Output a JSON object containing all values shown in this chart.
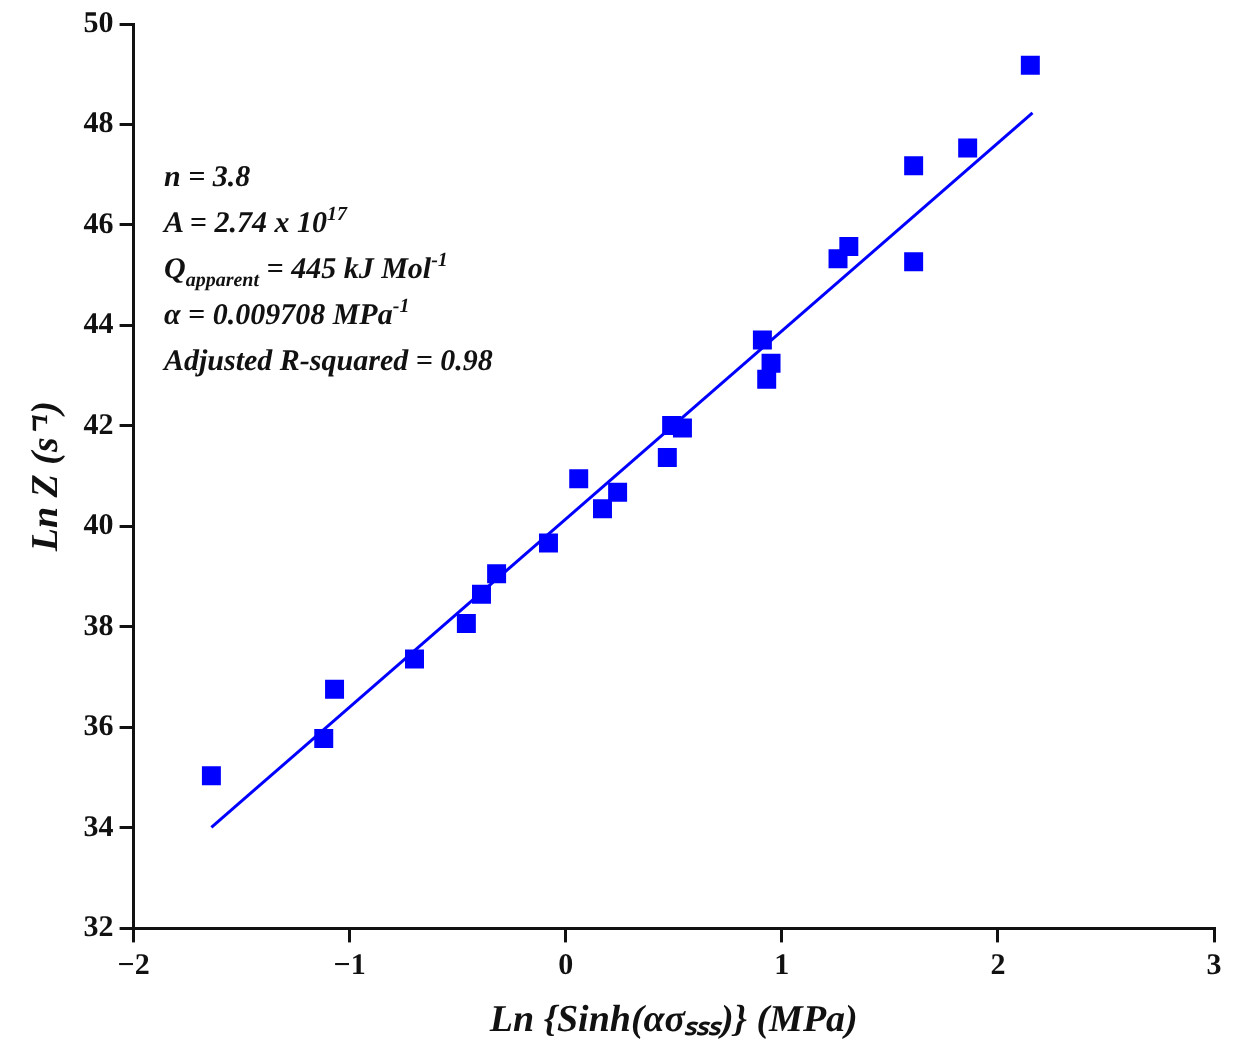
{
  "chart_data": {
    "type": "scatter",
    "xlabel": "Ln {Sinh(ασₛₛₛ)} (MPa)",
    "ylabel": "Ln Z (s⁻¹)",
    "xlim": [
      -2,
      3
    ],
    "xticks": [
      -2,
      -1,
      0,
      1,
      2,
      3
    ],
    "ylim": [
      32,
      50
    ],
    "yticks": [
      32,
      34,
      36,
      38,
      40,
      42,
      44,
      46,
      48,
      50
    ],
    "grid": false,
    "legend": false,
    "marker": "square",
    "series": [
      {
        "color": "#0000ff",
        "x": [
          -1.64,
          -1.12,
          -1.07,
          -0.7,
          -0.46,
          -0.39,
          -0.32,
          -0.08,
          0.06,
          0.17,
          0.24,
          0.47,
          0.49,
          0.54,
          0.91,
          0.95,
          0.93,
          1.26,
          1.31,
          1.61,
          1.61,
          1.86,
          2.15
        ],
        "values": [
          35.04,
          35.78,
          36.76,
          37.36,
          38.07,
          38.65,
          39.06,
          39.67,
          40.95,
          40.35,
          40.68,
          41.37,
          42.01,
          41.96,
          43.71,
          43.25,
          42.93,
          45.33,
          45.57,
          47.18,
          45.27,
          47.53,
          49.18
        ]
      },
      {
        "type": "line",
        "marker": "none",
        "color": "#0000ff",
        "x": [
          -1.64,
          2.16
        ],
        "values": [
          34.01,
          48.23
        ]
      }
    ],
    "annotations": [
      "n = 3.8",
      "A = 2.74 x 10$^{17}$",
      "Q$_{apparent}$ = 445 kJ Mol$^{-1}$",
      "α = 0.009708 MPa$^{-1}$",
      "Adjusted R-squared = 0.98"
    ]
  }
}
